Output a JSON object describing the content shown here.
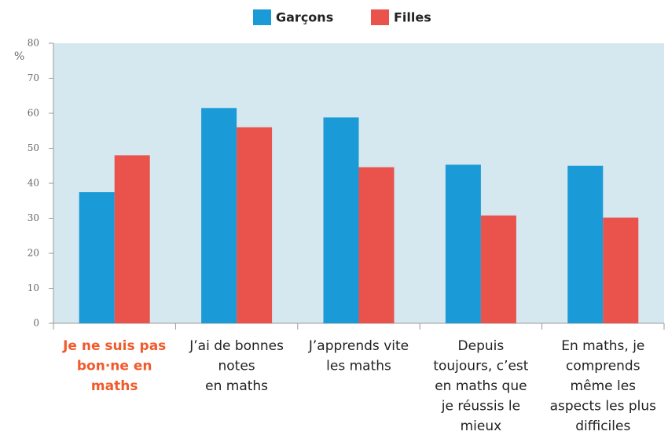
{
  "chart_data": {
    "type": "bar",
    "y_label": "%",
    "categories": [
      [
        "Je ne suis pas",
        "bon·ne en",
        "maths"
      ],
      [
        "J’ai de bonnes",
        "notes",
        "en maths"
      ],
      [
        "J’apprends vite",
        "les maths"
      ],
      [
        "Depuis",
        "toujours, c’est",
        "en maths que",
        "je réussis le",
        "mieux"
      ],
      [
        "En maths, je",
        "comprends",
        "même les",
        "aspects les plus",
        "difficiles"
      ]
    ],
    "series": [
      {
        "name": "Garçons",
        "color": "#1a9ad6",
        "values": [
          37.5,
          61.5,
          58.8,
          45.3,
          45
        ]
      },
      {
        "name": "Filles",
        "color": "#e9534c",
        "values": [
          48,
          56,
          44.6,
          30.8,
          30.2
        ]
      }
    ],
    "ylim": [
      0,
      80
    ],
    "yticks": [
      0,
      10,
      20,
      30,
      40,
      50,
      60,
      70,
      80
    ],
    "legend": "top",
    "plot_background": "#d5e7ef",
    "highlighted_category": 0,
    "highlighted_category_color": "#f15a2b"
  }
}
